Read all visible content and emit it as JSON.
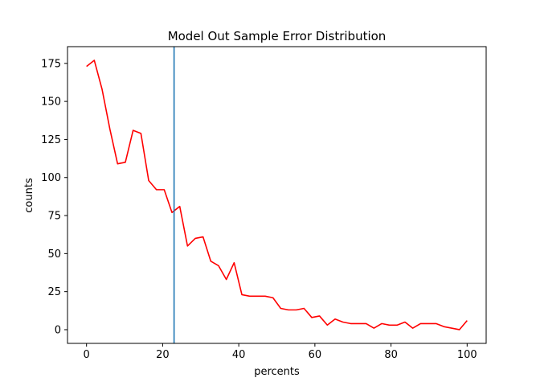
{
  "chart_data": {
    "type": "line",
    "title": "Model Out Sample Error Distribution",
    "xlabel": "percents",
    "ylabel": "counts",
    "xlim": [
      -5,
      105
    ],
    "ylim": [
      -9,
      186
    ],
    "xticks": [
      0,
      20,
      40,
      60,
      80,
      100
    ],
    "yticks": [
      0,
      25,
      50,
      75,
      100,
      125,
      150,
      175
    ],
    "grid": false,
    "series": [
      {
        "color": "#ff0000",
        "x": [
          0,
          2.04,
          4.08,
          6.12,
          8.16,
          10.2,
          12.24,
          14.29,
          16.33,
          18.37,
          20.41,
          22.45,
          24.49,
          26.53,
          28.57,
          30.61,
          32.65,
          34.69,
          36.73,
          38.78,
          40.82,
          42.86,
          44.9,
          46.94,
          48.98,
          51.02,
          53.06,
          55.1,
          57.14,
          59.18,
          61.22,
          63.27,
          65.31,
          67.35,
          69.39,
          71.43,
          73.47,
          75.51,
          77.55,
          79.59,
          81.63,
          83.67,
          85.71,
          87.76,
          89.8,
          91.84,
          93.88,
          95.92,
          97.96,
          100
        ],
        "y": [
          173,
          177,
          158,
          132,
          109,
          110,
          131,
          129,
          98,
          92,
          92,
          77,
          81,
          55,
          60,
          61,
          45,
          42,
          33,
          44,
          23,
          22,
          22,
          22,
          21,
          14,
          13,
          13,
          14,
          8,
          9,
          3,
          7,
          5,
          4,
          4,
          4,
          1,
          4,
          3,
          3,
          5,
          1,
          4,
          4,
          4,
          2,
          1,
          0,
          6
        ]
      }
    ],
    "vline": {
      "x": 23,
      "color": "#1f77b4"
    }
  }
}
